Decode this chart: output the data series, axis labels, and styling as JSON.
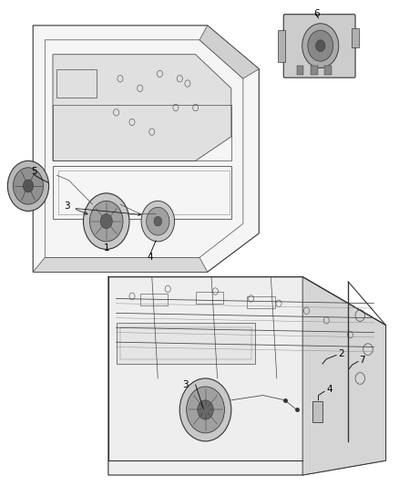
{
  "bg_color": "#ffffff",
  "fig_width": 4.38,
  "fig_height": 5.33,
  "dpi": 100,
  "line_color": "#444444",
  "light_gray": "#cccccc",
  "dark_gray": "#333333",
  "mid_gray": "#888888"
}
